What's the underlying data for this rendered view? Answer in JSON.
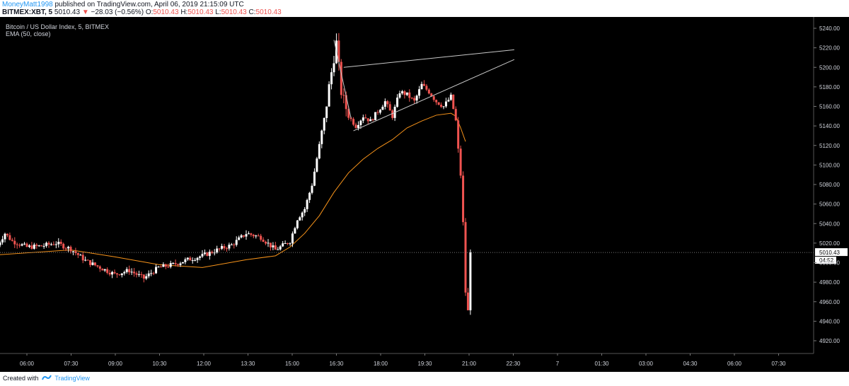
{
  "header": {
    "username": "MoneyMatt1998",
    "published_text": "published on TradingView.com, April 06, 2019 21:15:09 UTC",
    "symbol": "BITMEX:XBT, 5",
    "last_price": "5010.43",
    "change_arrow": "▼",
    "change": "−28.03 (−0.56%)",
    "o_label": "O:",
    "o_value": "5010.43",
    "h_label": "H:",
    "h_value": "5010.43",
    "l_label": "L:",
    "l_value": "5010.43",
    "c_label": "C:",
    "c_value": "5010.43"
  },
  "legend": {
    "instrument": "Bitcoin / US Dollar Index, 5, BITMEX",
    "indicator": "EMA (50, close)"
  },
  "footer": {
    "created_with": "Created with",
    "brand": "TradingView"
  },
  "colors": {
    "background": "#000000",
    "up_candle": "#ffffff",
    "down_candle": "#ef5350",
    "ema": "#f7931a",
    "trendline": "#c8c8c8",
    "price_line": "#9e9e9e"
  },
  "chart_data": {
    "type": "candlestick",
    "title": "Bitcoin / US Dollar Index, 5, BITMEX",
    "y_axis_ticks": [
      "5240.00",
      "5220.00",
      "5200.00",
      "5180.00",
      "5160.00",
      "5140.00",
      "5120.00",
      "5100.00",
      "5080.00",
      "5060.00",
      "5040.00",
      "5020.00",
      "5000.00",
      "4980.00",
      "4960.00",
      "4940.00",
      "4920.00"
    ],
    "ylim": [
      4908,
      5250
    ],
    "x_axis_ticks": [
      "06:00",
      "07:30",
      "09:00",
      "10:30",
      "12:00",
      "13:30",
      "15:00",
      "16:30",
      "18:00",
      "19:30",
      "21:00",
      "22:30",
      "7",
      "01:30",
      "03:00",
      "04:30",
      "06:00",
      "07:30"
    ],
    "last_price_label": "5010.43",
    "countdown_label": "04:52",
    "trendlines": [
      {
        "from": [
          "16:50",
          5200
        ],
        "to": [
          "22:40",
          5218
        ]
      },
      {
        "from": [
          "17:10",
          5135
        ],
        "to": [
          "22:40",
          5208
        ]
      },
      {
        "from": [
          "16:30",
          5228
        ],
        "to": [
          "17:05",
          5148
        ]
      }
    ],
    "ema_series": [
      [
        "05:00",
        5008
      ],
      [
        "06:00",
        5010
      ],
      [
        "07:30",
        5013
      ],
      [
        "09:00",
        5006
      ],
      [
        "10:30",
        4998
      ],
      [
        "12:00",
        4995
      ],
      [
        "13:30",
        5003
      ],
      [
        "14:30",
        5007
      ],
      [
        "15:00",
        5016
      ],
      [
        "15:30",
        5030
      ],
      [
        "16:00",
        5048
      ],
      [
        "16:30",
        5072
      ],
      [
        "17:00",
        5092
      ],
      [
        "17:30",
        5106
      ],
      [
        "18:00",
        5117
      ],
      [
        "18:30",
        5126
      ],
      [
        "19:00",
        5138
      ],
      [
        "19:30",
        5145
      ],
      [
        "20:00",
        5151
      ],
      [
        "20:30",
        5153
      ],
      [
        "20:40",
        5150
      ],
      [
        "20:50",
        5138
      ],
      [
        "21:00",
        5124
      ]
    ],
    "anchors": [
      [
        "05:00",
        5018
      ],
      [
        "05:15",
        5030
      ],
      [
        "05:30",
        5022
      ],
      [
        "06:00",
        5016
      ],
      [
        "06:30",
        5017
      ],
      [
        "07:00",
        5020
      ],
      [
        "07:30",
        5014
      ],
      [
        "08:00",
        5002
      ],
      [
        "08:30",
        4995
      ],
      [
        "09:00",
        4988
      ],
      [
        "09:30",
        4992
      ],
      [
        "10:00",
        4984
      ],
      [
        "10:30",
        4995
      ],
      [
        "11:00",
        4998
      ],
      [
        "11:30",
        5003
      ],
      [
        "12:00",
        5007
      ],
      [
        "12:30",
        5013
      ],
      [
        "13:00",
        5018
      ],
      [
        "13:30",
        5030
      ],
      [
        "14:00",
        5026
      ],
      [
        "14:30",
        5013
      ],
      [
        "15:00",
        5022
      ],
      [
        "15:15",
        5045
      ],
      [
        "15:30",
        5055
      ],
      [
        "15:45",
        5080
      ],
      [
        "16:00",
        5120
      ],
      [
        "16:10",
        5145
      ],
      [
        "16:20",
        5180
      ],
      [
        "16:35",
        5225
      ],
      [
        "16:45",
        5175
      ],
      [
        "17:00",
        5150
      ],
      [
        "17:15",
        5140
      ],
      [
        "17:30",
        5150
      ],
      [
        "17:45",
        5145
      ],
      [
        "18:00",
        5155
      ],
      [
        "18:15",
        5165
      ],
      [
        "18:30",
        5150
      ],
      [
        "18:45",
        5175
      ],
      [
        "19:00",
        5172
      ],
      [
        "19:15",
        5165
      ],
      [
        "19:30",
        5182
      ],
      [
        "19:45",
        5175
      ],
      [
        "20:00",
        5165
      ],
      [
        "20:15",
        5160
      ],
      [
        "20:30",
        5170
      ],
      [
        "20:40",
        5145
      ],
      [
        "20:45",
        5115
      ],
      [
        "20:50",
        5090
      ],
      [
        "20:55",
        5040
      ],
      [
        "21:00",
        4970
      ],
      [
        "21:05",
        4950
      ],
      [
        "21:10",
        5010.43
      ]
    ],
    "series": [
      {
        "name": "BITMEX:XBT",
        "interval": "5"
      },
      {
        "name": "EMA (50, close)"
      }
    ]
  }
}
